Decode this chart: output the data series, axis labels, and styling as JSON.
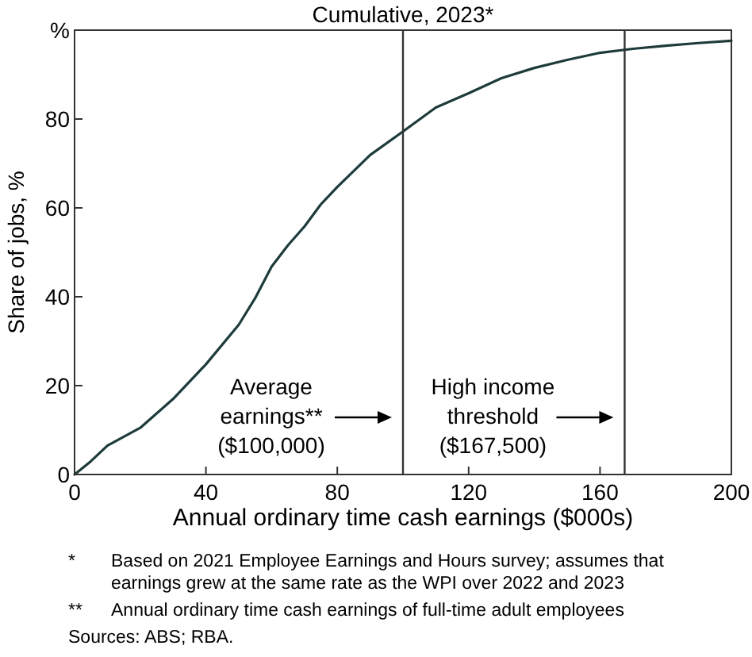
{
  "chart_data": {
    "type": "line",
    "title": "Cumulative, 2023*",
    "xlabel": "Annual ordinary time cash earnings ($000s)",
    "ylabel": "Share of jobs, %",
    "x": [
      0,
      5,
      10,
      20,
      30,
      40,
      50,
      55,
      60,
      65,
      70,
      75,
      80,
      90,
      100,
      110,
      120,
      130,
      140,
      150,
      160,
      170,
      180,
      190,
      200
    ],
    "series": [
      {
        "color": "#1e3b3b",
        "values": [
          0,
          3,
          6.5,
          10.5,
          17,
          24.8,
          33.7,
          39.7,
          46.8,
          51.6,
          55.8,
          60.8,
          64.7,
          71.9,
          77.2,
          82.6,
          85.8,
          89.2,
          91.5,
          93.3,
          94.9,
          95.8,
          96.5,
          97.1,
          97.6
        ]
      }
    ],
    "xlim": [
      0,
      200
    ],
    "xticks": [
      0,
      40,
      80,
      120,
      160,
      200
    ],
    "ylim": [
      0,
      100
    ],
    "yticks": [
      0,
      20,
      40,
      60,
      80,
      {
        "value": 100,
        "label": "%"
      }
    ],
    "grid": false,
    "marker": "none",
    "line_style": "solid",
    "ref_lines": [
      {
        "axis": "x",
        "value": 100,
        "color": "#333333"
      },
      {
        "axis": "x",
        "value": 167.5,
        "color": "#333333"
      }
    ],
    "annotations": [
      "Average\nearnings**\n($100,000)",
      "High income\nthreshold\n($167,500)",
      "* Based on 2021 Employee Earnings and Hours survey; assumes that earnings grew at the same rate as the WPI over 2022 and 2023",
      "** Annual ordinary time cash earnings of full-time adult employees",
      "Sources: ABS; RBA."
    ]
  }
}
